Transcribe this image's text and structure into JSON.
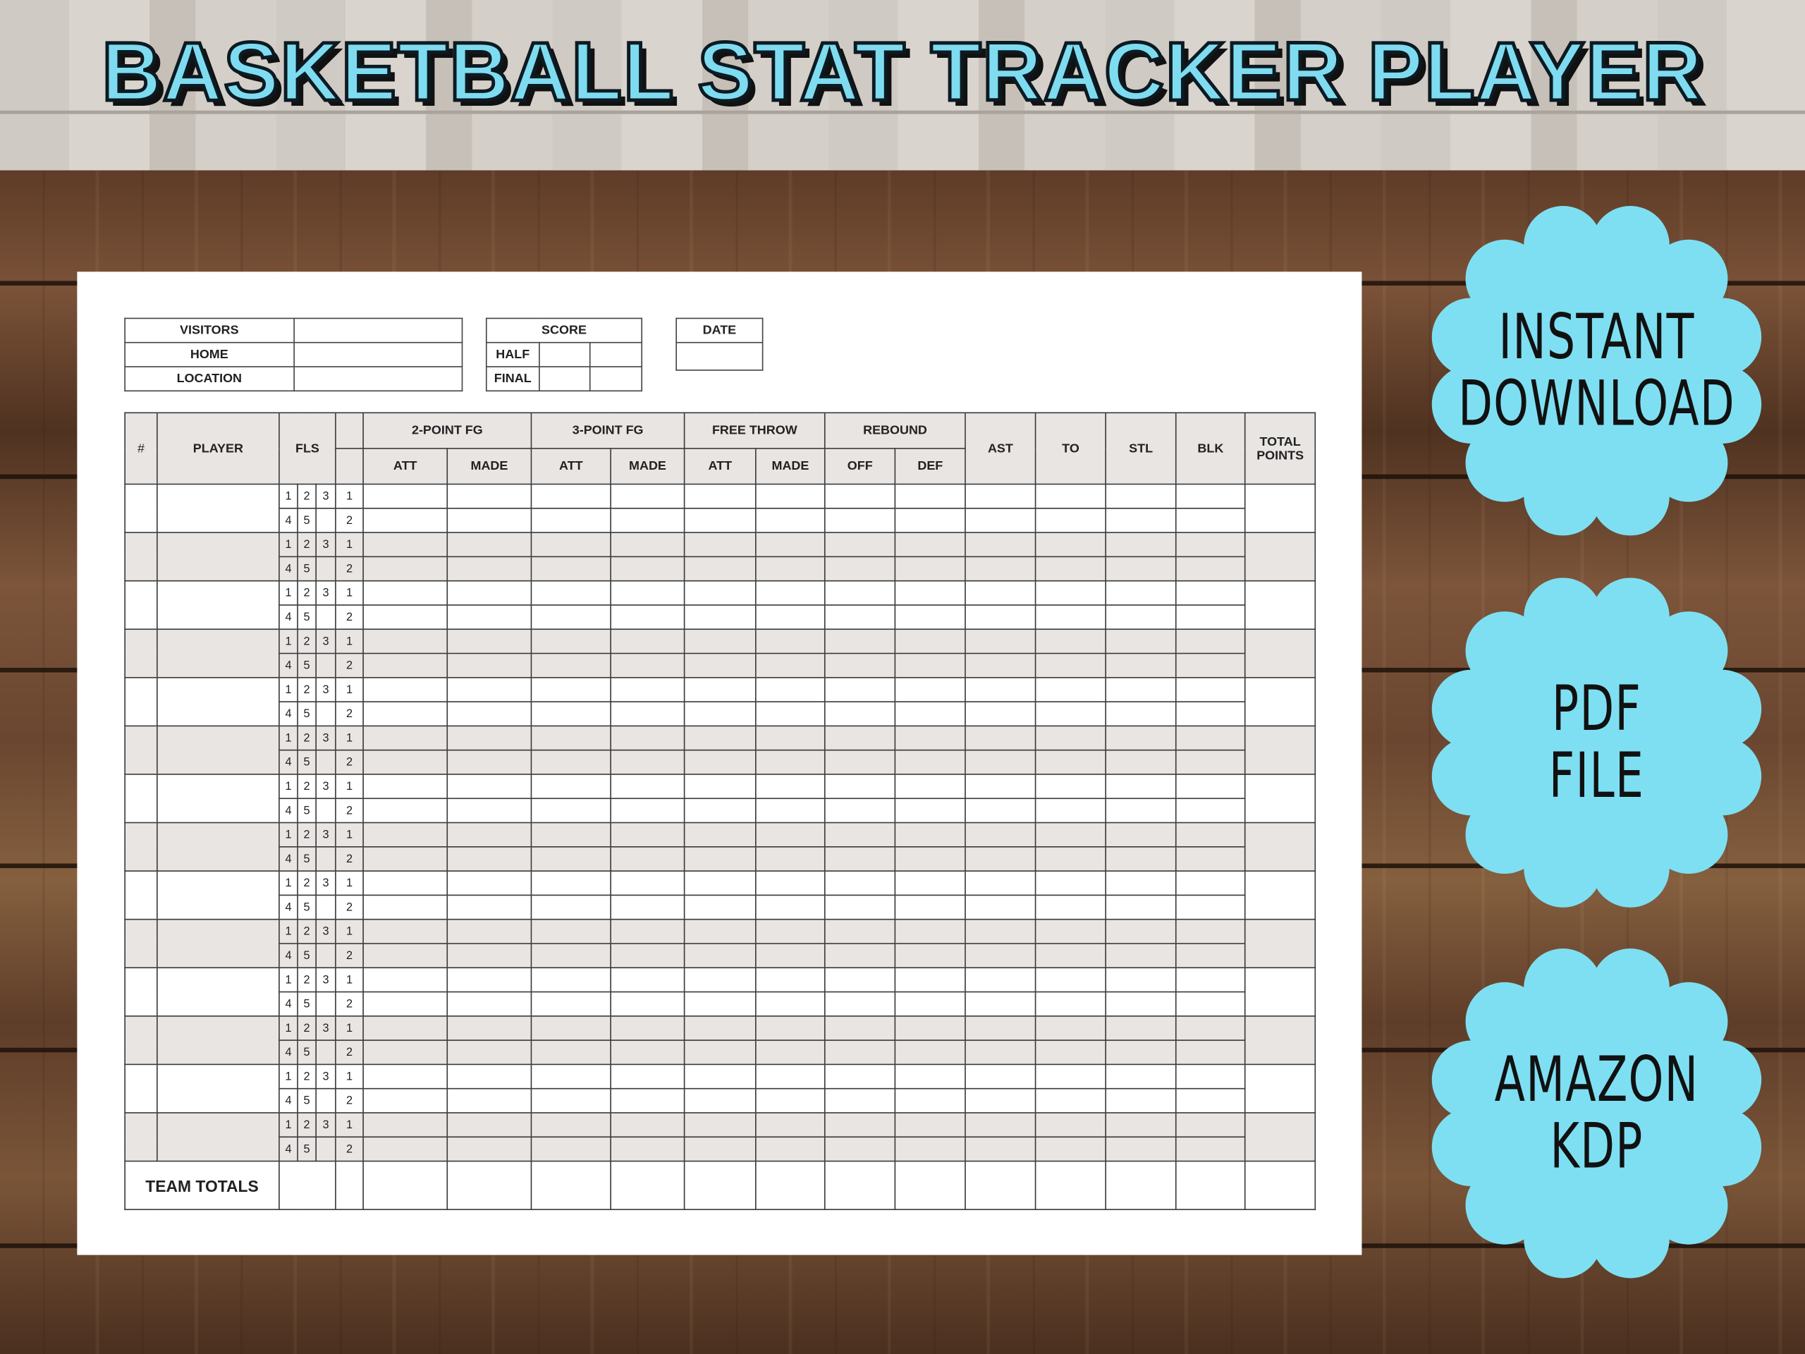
{
  "title": "BASKETBALL STAT TRACKER PLAYER",
  "info": {
    "visitors": "VISITORS",
    "home": "HOME",
    "location": "LOCATION",
    "score": "SCORE",
    "half": "HALF",
    "final": "FINAL",
    "date": "DATE"
  },
  "header": {
    "number": "#",
    "player": "PLAYER",
    "fls": "FLS",
    "two_point": "2-POINT FG",
    "three_point": "3-POINT FG",
    "free_throw": "FREE THROW",
    "rebound": "REBOUND",
    "att": "ATT",
    "made": "MADE",
    "off": "OFF",
    "def": "DEF",
    "ast": "AST",
    "to": "TO",
    "stl": "STL",
    "blk": "BLK",
    "total_points": "TOTAL POINTS"
  },
  "fouls_row1": [
    "1",
    "2",
    "3",
    "1"
  ],
  "fouls_row2": [
    "4",
    "5",
    "",
    "2"
  ],
  "team_totals": "TEAM TOTALS",
  "badges": [
    {
      "line1": "INSTANT",
      "line2": "DOWNLOAD"
    },
    {
      "line1": "PDF",
      "line2": "FILE"
    },
    {
      "line1": "AMAZON",
      "line2": "KDP"
    }
  ],
  "colors": {
    "badge": "#7fdff2",
    "title": "#7fdcf0",
    "shade": "#e8e5e3"
  }
}
